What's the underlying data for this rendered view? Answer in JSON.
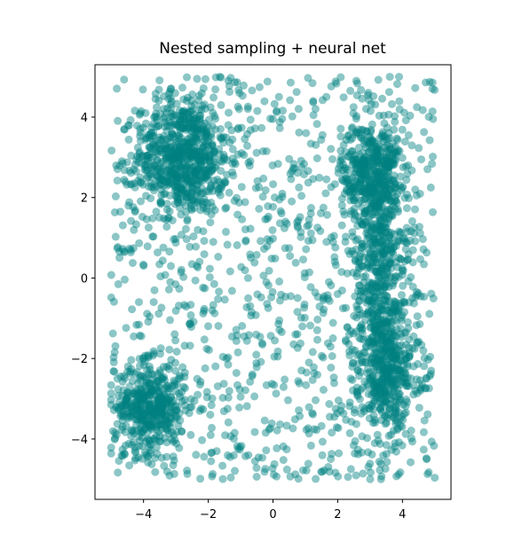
{
  "chart_data": {
    "type": "scatter",
    "title": "Nested sampling + neural net",
    "xlabel": "",
    "ylabel": "",
    "xlim": [
      -5.5,
      5.5
    ],
    "ylim": [
      -5.5,
      5.3
    ],
    "xticks": [
      -4,
      -2,
      0,
      2,
      4
    ],
    "yticks": [
      -4,
      -2,
      0,
      2,
      4
    ],
    "xtick_labels": [
      "−4",
      "−2",
      "0",
      "2",
      "4"
    ],
    "ytick_labels": [
      "−4",
      "−2",
      "0",
      "2",
      "4"
    ],
    "grid": false,
    "marker_color": "#008080",
    "marker_alpha": 0.45,
    "series": [
      {
        "values_description_free": true,
        "clusters": [
          {
            "center": [
              -2.8,
              3.0
            ],
            "spread": [
              0.7,
              0.7
            ],
            "n": 650
          },
          {
            "center": [
              -3.8,
              -3.2
            ],
            "spread": [
              0.55,
              0.55
            ],
            "n": 430
          },
          {
            "center": [
              3.0,
              2.6
            ],
            "spread": [
              0.45,
              0.6
            ],
            "n": 330
          },
          {
            "center": [
              3.3,
              0.0
            ],
            "spread": [
              0.45,
              1.9
            ],
            "n": 640
          },
          {
            "center": [
              3.6,
              -2.3
            ],
            "spread": [
              0.45,
              0.6
            ],
            "n": 260
          }
        ],
        "background": {
          "x_range": [
            -5,
            5
          ],
          "y_range": [
            -5,
            5
          ],
          "n": 1050
        }
      }
    ]
  }
}
